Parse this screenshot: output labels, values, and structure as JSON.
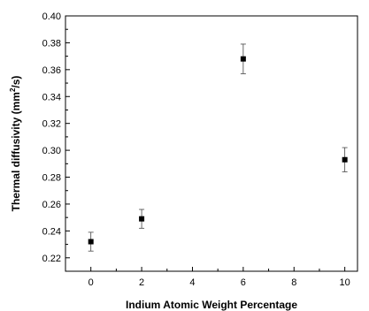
{
  "chart_data": {
    "type": "scatter",
    "title": "",
    "xlabel": "Indium Atomic Weight Percentage",
    "ylabel_prefix": "Thermal diffusivity (mm",
    "ylabel_sup": "2",
    "ylabel_suffix": "/s)",
    "xlim": [
      -1,
      10.5
    ],
    "ylim": [
      0.21,
      0.4
    ],
    "xticks": [
      0,
      2,
      4,
      6,
      8,
      10
    ],
    "xtick_labels": [
      "0",
      "2",
      "4",
      "6",
      "8",
      "10"
    ],
    "yticks": [
      0.22,
      0.24,
      0.26,
      0.28,
      0.3,
      0.32,
      0.34,
      0.36,
      0.38,
      0.4
    ],
    "ytick_labels": [
      "0.22",
      "0.24",
      "0.26",
      "0.28",
      "0.30",
      "0.32",
      "0.34",
      "0.36",
      "0.38",
      "0.40"
    ],
    "grid": false,
    "legend": "none",
    "marker": "square",
    "series": [
      {
        "points": [
          {
            "x": 0,
            "y": 0.232,
            "err": 0.007
          },
          {
            "x": 2,
            "y": 0.249,
            "err": 0.007
          },
          {
            "x": 6,
            "y": 0.368,
            "err": 0.011
          },
          {
            "x": 10,
            "y": 0.293,
            "err": 0.009
          }
        ]
      }
    ],
    "colors": {
      "marker": "#000000",
      "axis": "#000000"
    }
  }
}
